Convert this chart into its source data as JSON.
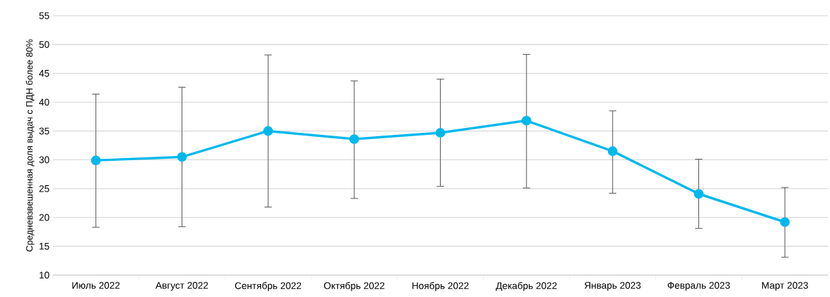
{
  "chart_data": {
    "type": "line",
    "ylabel": "Средневзвешенная доля выдач с ПДН более 80%",
    "categories": [
      "Июль 2022",
      "Август 2022",
      "Сентябрь 2022",
      "Октябрь 2022",
      "Ноябрь 2022",
      "Декабрь 2022",
      "Январь 2023",
      "Февраль 2023",
      "Март 2023"
    ],
    "series": [
      {
        "color": "#00b8ec",
        "marker": "circle",
        "line_style": "solid",
        "values": [
          29.9,
          30.5,
          35.0,
          33.6,
          34.7,
          36.8,
          31.5,
          24.1,
          19.2
        ],
        "errors": [
          [
            18.3,
            41.4
          ],
          [
            18.4,
            42.6
          ],
          [
            21.8,
            48.2
          ],
          [
            23.3,
            43.7
          ],
          [
            25.4,
            44.0
          ],
          [
            25.1,
            48.3
          ],
          [
            24.2,
            38.5
          ],
          [
            18.1,
            30.1
          ],
          [
            13.1,
            25.2
          ]
        ]
      }
    ],
    "ylim": [
      10,
      55
    ],
    "yticks": [
      10,
      15,
      20,
      25,
      30,
      35,
      40,
      45,
      50,
      55
    ],
    "grid": "y"
  }
}
